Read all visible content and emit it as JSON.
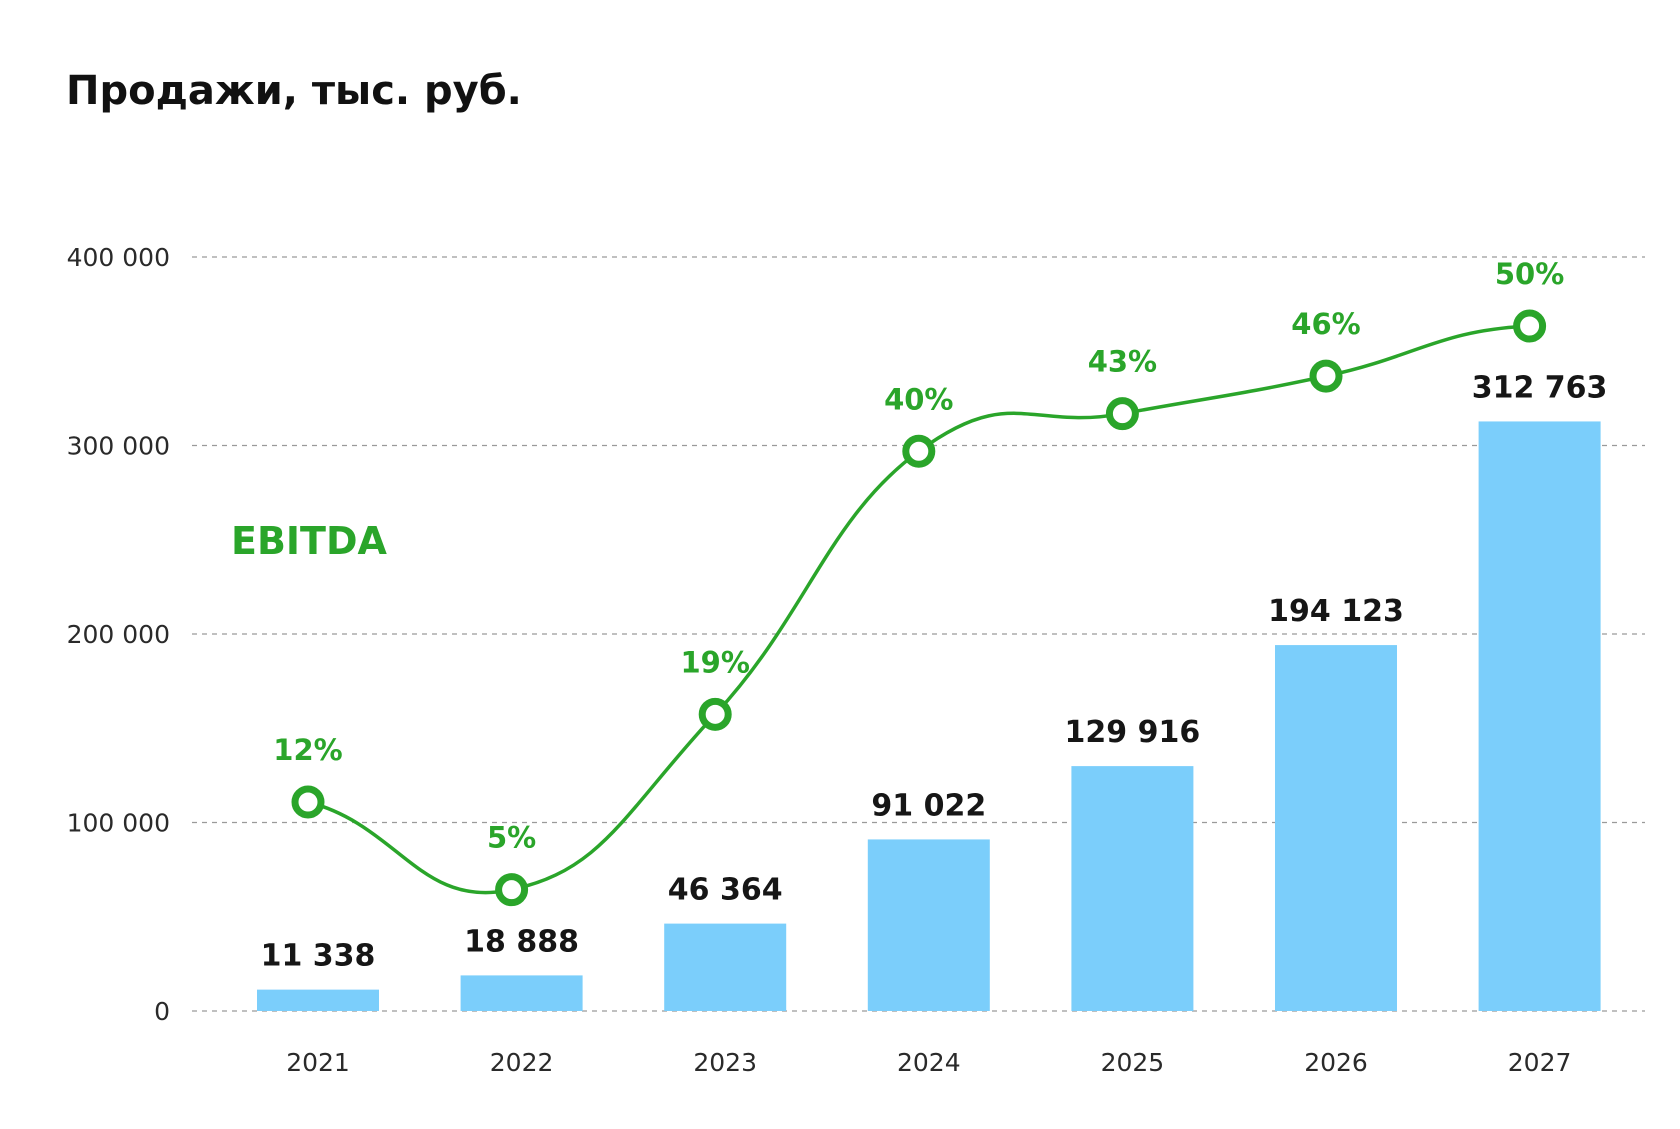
{
  "chart_data": {
    "type": "bar",
    "title": "Продажи, тыс. руб.",
    "xlabel": "",
    "ylabel": "",
    "ylim": [
      0,
      400000
    ],
    "yticks": [
      0,
      100000,
      200000,
      300000,
      400000
    ],
    "ytick_labels": [
      "0",
      "100 000",
      "200 000",
      "300 000",
      "400 000"
    ],
    "grid": true,
    "categories": [
      "2021",
      "2022",
      "2023",
      "2024",
      "2025",
      "2026",
      "2027"
    ],
    "series": [
      {
        "name": "Продажи",
        "type": "bar",
        "values": [
          11338,
          18888,
          46364,
          91022,
          129916,
          194123,
          312763
        ],
        "labels": [
          "11 338",
          "18 888",
          "46 364",
          "91 022",
          "129 916",
          "194 123",
          "312 763"
        ]
      },
      {
        "name": "EBITDA",
        "type": "line",
        "values": [
          12,
          5,
          19,
          40,
          43,
          46,
          50
        ],
        "labels": [
          "12%",
          "5%",
          "19%",
          "40%",
          "43%",
          "46%",
          "50%"
        ]
      }
    ],
    "colors": {
      "bar": "#7bcefb",
      "line": "#2aa52a",
      "grid": "#9a9a9a",
      "text": "#161616"
    }
  }
}
